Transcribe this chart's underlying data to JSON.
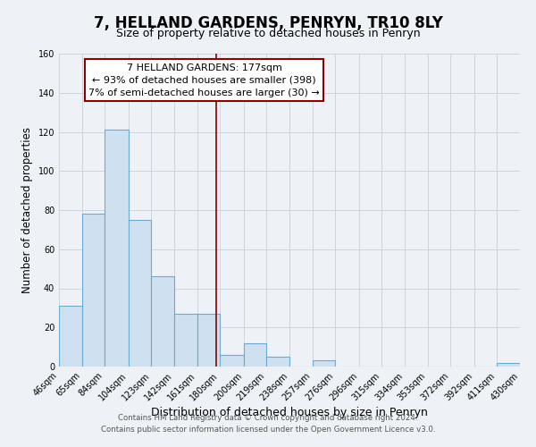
{
  "title": "7, HELLAND GARDENS, PENRYN, TR10 8LY",
  "subtitle": "Size of property relative to detached houses in Penryn",
  "xlabel": "Distribution of detached houses by size in Penryn",
  "ylabel": "Number of detached properties",
  "bin_edges": [
    46,
    65,
    84,
    104,
    123,
    142,
    161,
    180,
    200,
    219,
    238,
    257,
    276,
    296,
    315,
    334,
    353,
    372,
    392,
    411,
    430
  ],
  "bar_heights": [
    31,
    78,
    121,
    75,
    46,
    27,
    27,
    6,
    12,
    5,
    0,
    3,
    0,
    0,
    0,
    0,
    0,
    0,
    0,
    2
  ],
  "bar_color": "#cfe0f0",
  "bar_edge_color": "#6aaad4",
  "ylim": [
    0,
    160
  ],
  "vline_x": 177,
  "vline_color": "#8b0000",
  "annotation_text": "7 HELLAND GARDENS: 177sqm\n← 93% of detached houses are smaller (398)\n7% of semi-detached houses are larger (30) →",
  "annotation_box_color": "white",
  "annotation_box_edge_color": "#8b0000",
  "footer_line1": "Contains HM Land Registry data © Crown copyright and database right 2024.",
  "footer_line2": "Contains public sector information licensed under the Open Government Licence v3.0.",
  "background_color": "#eef2f7",
  "title_fontsize": 12,
  "subtitle_fontsize": 9,
  "tick_label_fontsize": 7,
  "ylabel_fontsize": 8.5,
  "xlabel_fontsize": 9,
  "ytick_values": [
    0,
    20,
    40,
    60,
    80,
    100,
    120,
    140,
    160
  ],
  "grid_color": "#c8d0da"
}
